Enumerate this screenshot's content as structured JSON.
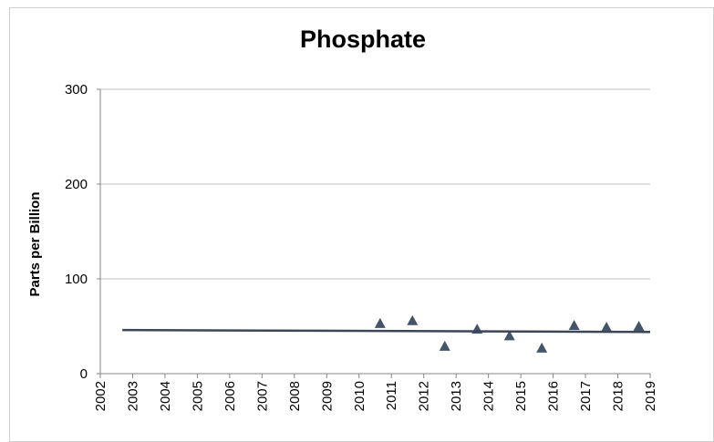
{
  "chart_data": {
    "type": "scatter",
    "title": "Phosphate",
    "y_label": "Parts per Billion",
    "xlim": [
      2002,
      2019
    ],
    "xticks": [
      2002,
      2003,
      2004,
      2005,
      2006,
      2007,
      2008,
      2009,
      2010,
      2011,
      2012,
      2013,
      2014,
      2015,
      2016,
      2017,
      2018,
      2019
    ],
    "ylim": [
      0,
      300
    ],
    "yticks": [
      0,
      100,
      200,
      300
    ],
    "grid": true,
    "series": [
      {
        "type": "scatter",
        "marker": "triangle",
        "color": "#44546a",
        "x": [
          2010.65,
          2011.65,
          2012.65,
          2013.65,
          2014.65,
          2015.65,
          2016.65,
          2017.65,
          2018.65
        ],
        "values": [
          53,
          56,
          29,
          47,
          40,
          27,
          51,
          49,
          50
        ]
      },
      {
        "type": "line",
        "color": "#3b4658",
        "x": [
          2002.68,
          2019
        ],
        "values": [
          46,
          44
        ]
      }
    ]
  }
}
